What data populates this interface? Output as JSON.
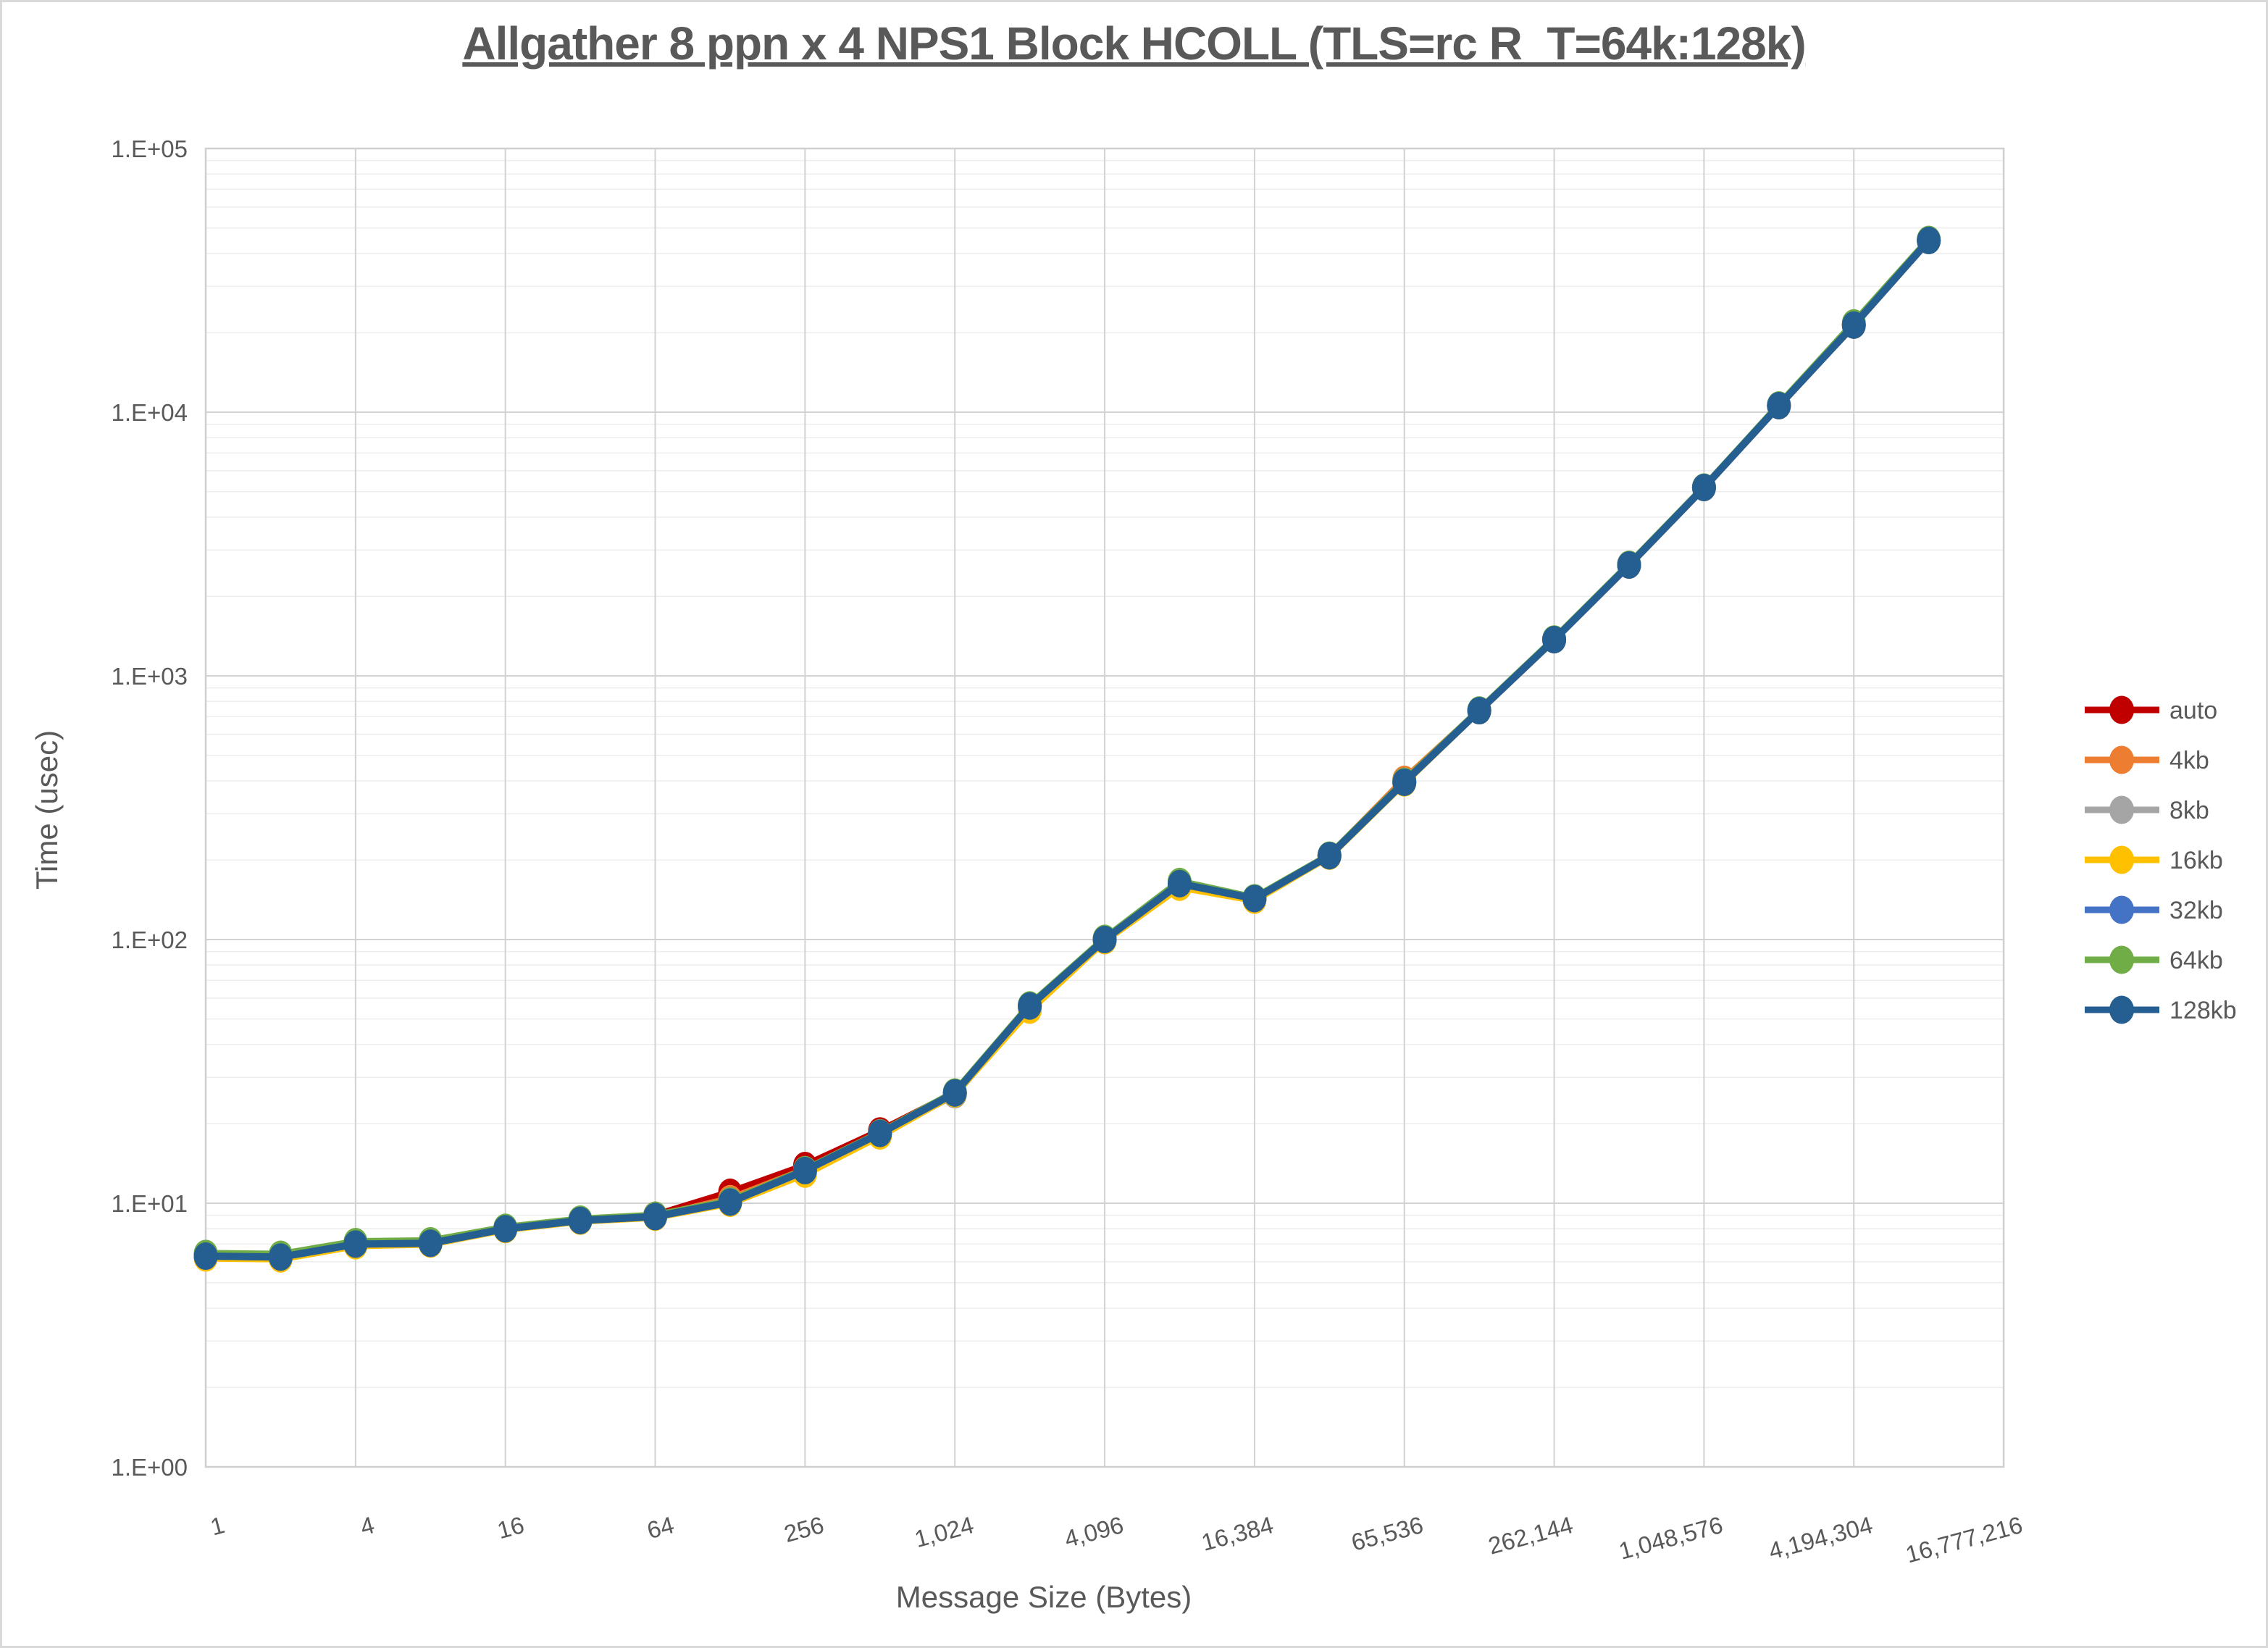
{
  "title": {
    "text": "Allgather 8 ppn x 4 NPS1 Block HCOLL (TLS=rc R_T=64k:128k)"
  },
  "axes": {
    "x": {
      "label": "Message Size (Bytes)",
      "ticks": [
        "1",
        "4",
        "16",
        "64",
        "256",
        "1,024",
        "4,096",
        "16,384",
        "65,536",
        "262,144",
        "1,048,576",
        "4,194,304",
        "16,777,216"
      ]
    },
    "y": {
      "label": "Time (usec)",
      "ticks": [
        "1.E+00",
        "1.E+01",
        "1.E+02",
        "1.E+03",
        "1.E+04",
        "1.E+05"
      ]
    }
  },
  "colors": {
    "text": "#595959",
    "grid_major": "#d2d2d2",
    "grid_minor": "#ededed",
    "plot_border": "#cfcfcf",
    "background": "#ffffff"
  },
  "chart_data": {
    "type": "line",
    "title": "Allgather 8 ppn x 4 NPS1 Block HCOLL (TLS=rc R_T=64k:128k)",
    "xlabel": "Message Size (Bytes)",
    "ylabel": "Time (usec)",
    "x_scale": "log2",
    "y_scale": "log10",
    "xlim": [
      1,
      16777216
    ],
    "ylim": [
      1,
      100000
    ],
    "grid": true,
    "legend_position": "right",
    "x": [
      1,
      2,
      4,
      8,
      16,
      32,
      64,
      128,
      256,
      512,
      1024,
      2048,
      4096,
      8192,
      16384,
      32768,
      65536,
      131072,
      262144,
      524288,
      1048576,
      2097152,
      4194304,
      8388608
    ],
    "series": [
      {
        "name": "auto",
        "color": "#c00000",
        "values": [
          6.3,
          6.25,
          7,
          7.05,
          8,
          8.6,
          9,
          11,
          13.9,
          18.8,
          26.2,
          56,
          100,
          163,
          143,
          208,
          395,
          738,
          1372,
          2633,
          5180,
          10590,
          21400,
          44800
        ]
      },
      {
        "name": "4kb",
        "color": "#ed7d31",
        "values": [
          6.3,
          6.25,
          7,
          7.05,
          8,
          8.6,
          8.9,
          10.4,
          13.4,
          18.4,
          26.2,
          56,
          100,
          163,
          143,
          208,
          405,
          738,
          1372,
          2633,
          5180,
          10590,
          21400,
          44800
        ]
      },
      {
        "name": "8kb",
        "color": "#a5a5a5",
        "values": [
          6.3,
          6.25,
          7,
          7.05,
          8,
          8.6,
          8.9,
          10.1,
          13.3,
          18.3,
          25.8,
          55.5,
          100,
          163,
          143,
          208,
          395,
          738,
          1372,
          2633,
          5180,
          10590,
          21400,
          44800
        ]
      },
      {
        "name": "16kb",
        "color": "#ffc000",
        "values": [
          6.2,
          6.15,
          6.9,
          7,
          7.95,
          8.55,
          8.85,
          10,
          12.9,
          18,
          26,
          54,
          99,
          158,
          141,
          207,
          393,
          738,
          1372,
          2633,
          5180,
          10590,
          21400,
          44800
        ]
      },
      {
        "name": "32kb",
        "color": "#4472c4",
        "values": [
          6.3,
          6.25,
          7,
          7.05,
          8,
          8.6,
          8.9,
          10.1,
          13.3,
          18.4,
          26.2,
          56,
          100,
          163,
          143,
          208,
          395,
          738,
          1372,
          2633,
          5180,
          10590,
          21400,
          44800
        ]
      },
      {
        "name": "64kb",
        "color": "#70ad47",
        "values": [
          6.45,
          6.4,
          7.15,
          7.2,
          8.1,
          8.7,
          9,
          10.2,
          13.4,
          18.5,
          26.4,
          56.5,
          101,
          166,
          144,
          209,
          398,
          742,
          1380,
          2650,
          5200,
          10650,
          21800,
          45200
        ]
      },
      {
        "name": "128kb",
        "color": "#255e91",
        "values": [
          6.3,
          6.25,
          7,
          7.05,
          8,
          8.6,
          8.9,
          10.1,
          13.3,
          18.4,
          26.2,
          56,
          100,
          163,
          143,
          208,
          395,
          738,
          1372,
          2633,
          5180,
          10590,
          21400,
          44800
        ]
      }
    ]
  }
}
